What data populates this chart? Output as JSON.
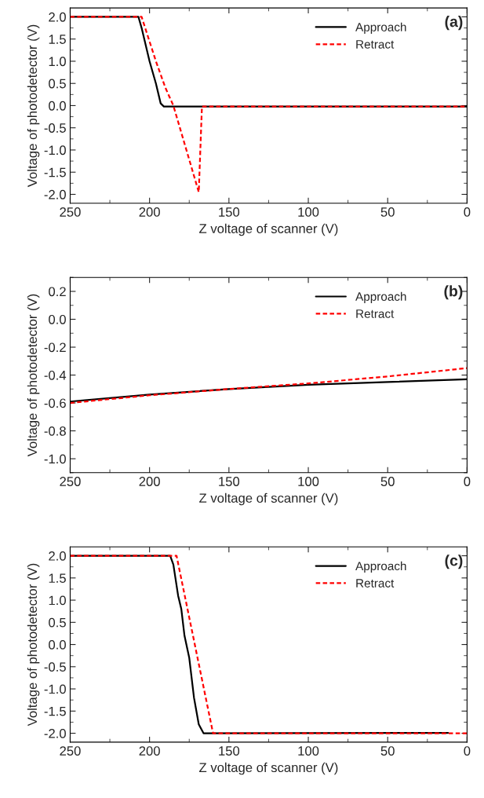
{
  "chart_data": [
    {
      "type": "line",
      "xlabel": "Z voltage of scanner (V)",
      "ylabel": "Voltage of photodetector (V)",
      "annotations": [
        "(a)"
      ],
      "xlim": [
        250,
        0
      ],
      "xticks": [
        250,
        200,
        150,
        100,
        50,
        0
      ],
      "ylim": [
        -2.2,
        2.2
      ],
      "yticks": [
        {
          "value": 2.0,
          "label": "2.0"
        },
        {
          "value": 1.5,
          "label": "1.5"
        },
        {
          "value": 1.0,
          "label": "1.0"
        },
        {
          "value": 0.5,
          "label": "0.5"
        },
        {
          "value": 0.0,
          "label": "0.0"
        },
        {
          "value": -0.5,
          "label": "-0.5"
        },
        {
          "value": -1.0,
          "label": "-1.0"
        },
        {
          "value": -1.5,
          "label": "-1.5"
        },
        {
          "value": -2.0,
          "label": "-2.0"
        }
      ],
      "legend": "top right",
      "grid": false,
      "series": [
        {
          "name": "Approach",
          "color": "#000000",
          "line_style": "solid",
          "x": [
            250,
            207,
            205,
            200,
            196,
            193,
            191,
            0
          ],
          "values": [
            2.0,
            2.0,
            1.75,
            1.0,
            0.5,
            0.05,
            -0.02,
            -0.02
          ]
        },
        {
          "name": "Retract",
          "color": "#ff0000",
          "line_style": "dashed",
          "x": [
            250,
            205,
            196,
            190,
            185,
            169,
            167,
            0
          ],
          "values": [
            2.0,
            2.0,
            1.0,
            0.4,
            0.0,
            -1.95,
            -0.02,
            -0.02
          ]
        }
      ]
    },
    {
      "type": "line",
      "xlabel": "Z voltage of scanner (V)",
      "ylabel": "Voltage of photodetector (V)",
      "annotations": [
        "(b)"
      ],
      "xlim": [
        250,
        0
      ],
      "xticks": [
        250,
        200,
        150,
        100,
        50,
        0
      ],
      "ylim": [
        -1.1,
        0.3
      ],
      "yticks": [
        {
          "value": 0.2,
          "label": "0.2"
        },
        {
          "value": 0.0,
          "label": "0.0"
        },
        {
          "value": -0.2,
          "label": "-0.2"
        },
        {
          "value": -0.4,
          "label": "-0.4"
        },
        {
          "value": -0.6,
          "label": "-0.6"
        },
        {
          "value": -0.8,
          "label": "-0.8"
        },
        {
          "value": -1.0,
          "label": "-1.0"
        }
      ],
      "legend": "top right",
      "grid": false,
      "series": [
        {
          "name": "Approach",
          "color": "#000000",
          "line_style": "solid",
          "x": [
            250,
            200,
            150,
            100,
            50,
            0
          ],
          "values": [
            -0.59,
            -0.54,
            -0.5,
            -0.47,
            -0.45,
            -0.43
          ]
        },
        {
          "name": "Retract",
          "color": "#ff0000",
          "line_style": "dashed",
          "x": [
            250,
            200,
            150,
            100,
            50,
            0
          ],
          "values": [
            -0.6,
            -0.545,
            -0.5,
            -0.46,
            -0.41,
            -0.35
          ]
        }
      ]
    },
    {
      "type": "line",
      "xlabel": "Z voltage of scanner (V)",
      "ylabel": "Voltage of photodetector (V)",
      "annotations": [
        "(c)"
      ],
      "xlim": [
        250,
        0
      ],
      "xticks": [
        250,
        200,
        150,
        100,
        50,
        0
      ],
      "ylim": [
        -2.2,
        2.2
      ],
      "yticks": [
        {
          "value": 2.0,
          "label": "2.0"
        },
        {
          "value": 1.5,
          "label": "1.5"
        },
        {
          "value": 1.0,
          "label": "1.0"
        },
        {
          "value": 0.5,
          "label": "0.5"
        },
        {
          "value": 0.0,
          "label": "0.0"
        },
        {
          "value": -0.5,
          "label": "-0.5"
        },
        {
          "value": -1.0,
          "label": "-1.0"
        },
        {
          "value": -1.5,
          "label": "-1.5"
        },
        {
          "value": -2.0,
          "label": "-2.0"
        }
      ],
      "legend": "top right",
      "grid": false,
      "series": [
        {
          "name": "Approach",
          "color": "#000000",
          "line_style": "solid",
          "x": [
            250,
            187,
            185,
            182,
            180,
            178,
            175,
            172,
            169,
            166,
            12
          ],
          "values": [
            2.0,
            2.0,
            1.8,
            1.1,
            0.8,
            0.2,
            -0.3,
            -1.2,
            -1.8,
            -2.0,
            -1.99
          ]
        },
        {
          "name": "Retract",
          "color": "#ff0000",
          "line_style": "dashed",
          "x": [
            250,
            183,
            160,
            0
          ],
          "values": [
            2.0,
            2.0,
            -2.0,
            -2.0
          ]
        }
      ]
    }
  ]
}
